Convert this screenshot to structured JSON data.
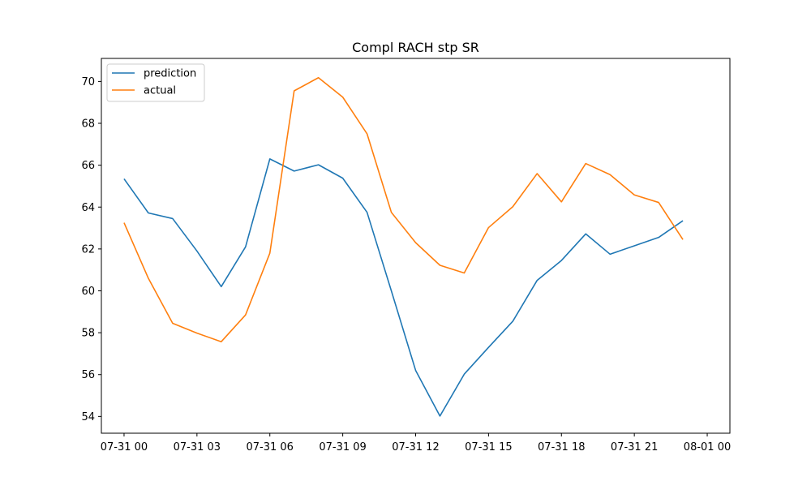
{
  "chart_data": {
    "type": "line",
    "title": "Compl RACH stp SR",
    "xlabel": "",
    "ylabel": "",
    "x": [
      "07-31 00:00",
      "07-31 01:00",
      "07-31 02:00",
      "07-31 03:00",
      "07-31 04:00",
      "07-31 05:00",
      "07-31 06:00",
      "07-31 07:00",
      "07-31 08:00",
      "07-31 09:00",
      "07-31 10:00",
      "07-31 11:00",
      "07-31 12:00",
      "07-31 13:00",
      "07-31 14:00",
      "07-31 15:00",
      "07-31 16:00",
      "07-31 17:00",
      "07-31 18:00",
      "07-31 19:00",
      "07-31 20:00",
      "07-31 21:00",
      "07-31 22:00",
      "07-31 23:00"
    ],
    "x_ticks": [
      "07-31 00",
      "07-31 03",
      "07-31 06",
      "07-31 09",
      "07-31 12",
      "07-31 15",
      "07-31 18",
      "07-31 21",
      "08-01 00"
    ],
    "xlim": [
      "07-30 23:04",
      "08-01 00:56"
    ],
    "y_ticks": [
      54,
      56,
      58,
      60,
      62,
      64,
      66,
      68,
      70
    ],
    "ylim": [
      53.2,
      71.1
    ],
    "grid": false,
    "legend_position": "upper-left",
    "series": [
      {
        "name": "prediction",
        "color": "#1f77b4",
        "values": [
          65.35,
          63.72,
          63.45,
          61.9,
          60.2,
          62.1,
          66.3,
          65.72,
          66.02,
          65.38,
          63.75,
          60.0,
          56.2,
          54.02,
          56.02,
          57.3,
          58.55,
          60.5,
          61.45,
          62.72,
          61.75,
          62.15,
          62.55,
          63.35
        ]
      },
      {
        "name": "actual",
        "color": "#ff7f0e",
        "values": [
          63.25,
          60.6,
          58.45,
          57.98,
          57.57,
          58.85,
          61.8,
          69.55,
          70.18,
          69.25,
          67.5,
          63.75,
          62.3,
          61.22,
          60.85,
          63.02,
          64.02,
          65.6,
          64.25,
          66.08,
          65.55,
          64.58,
          64.22,
          62.45
        ]
      }
    ]
  }
}
